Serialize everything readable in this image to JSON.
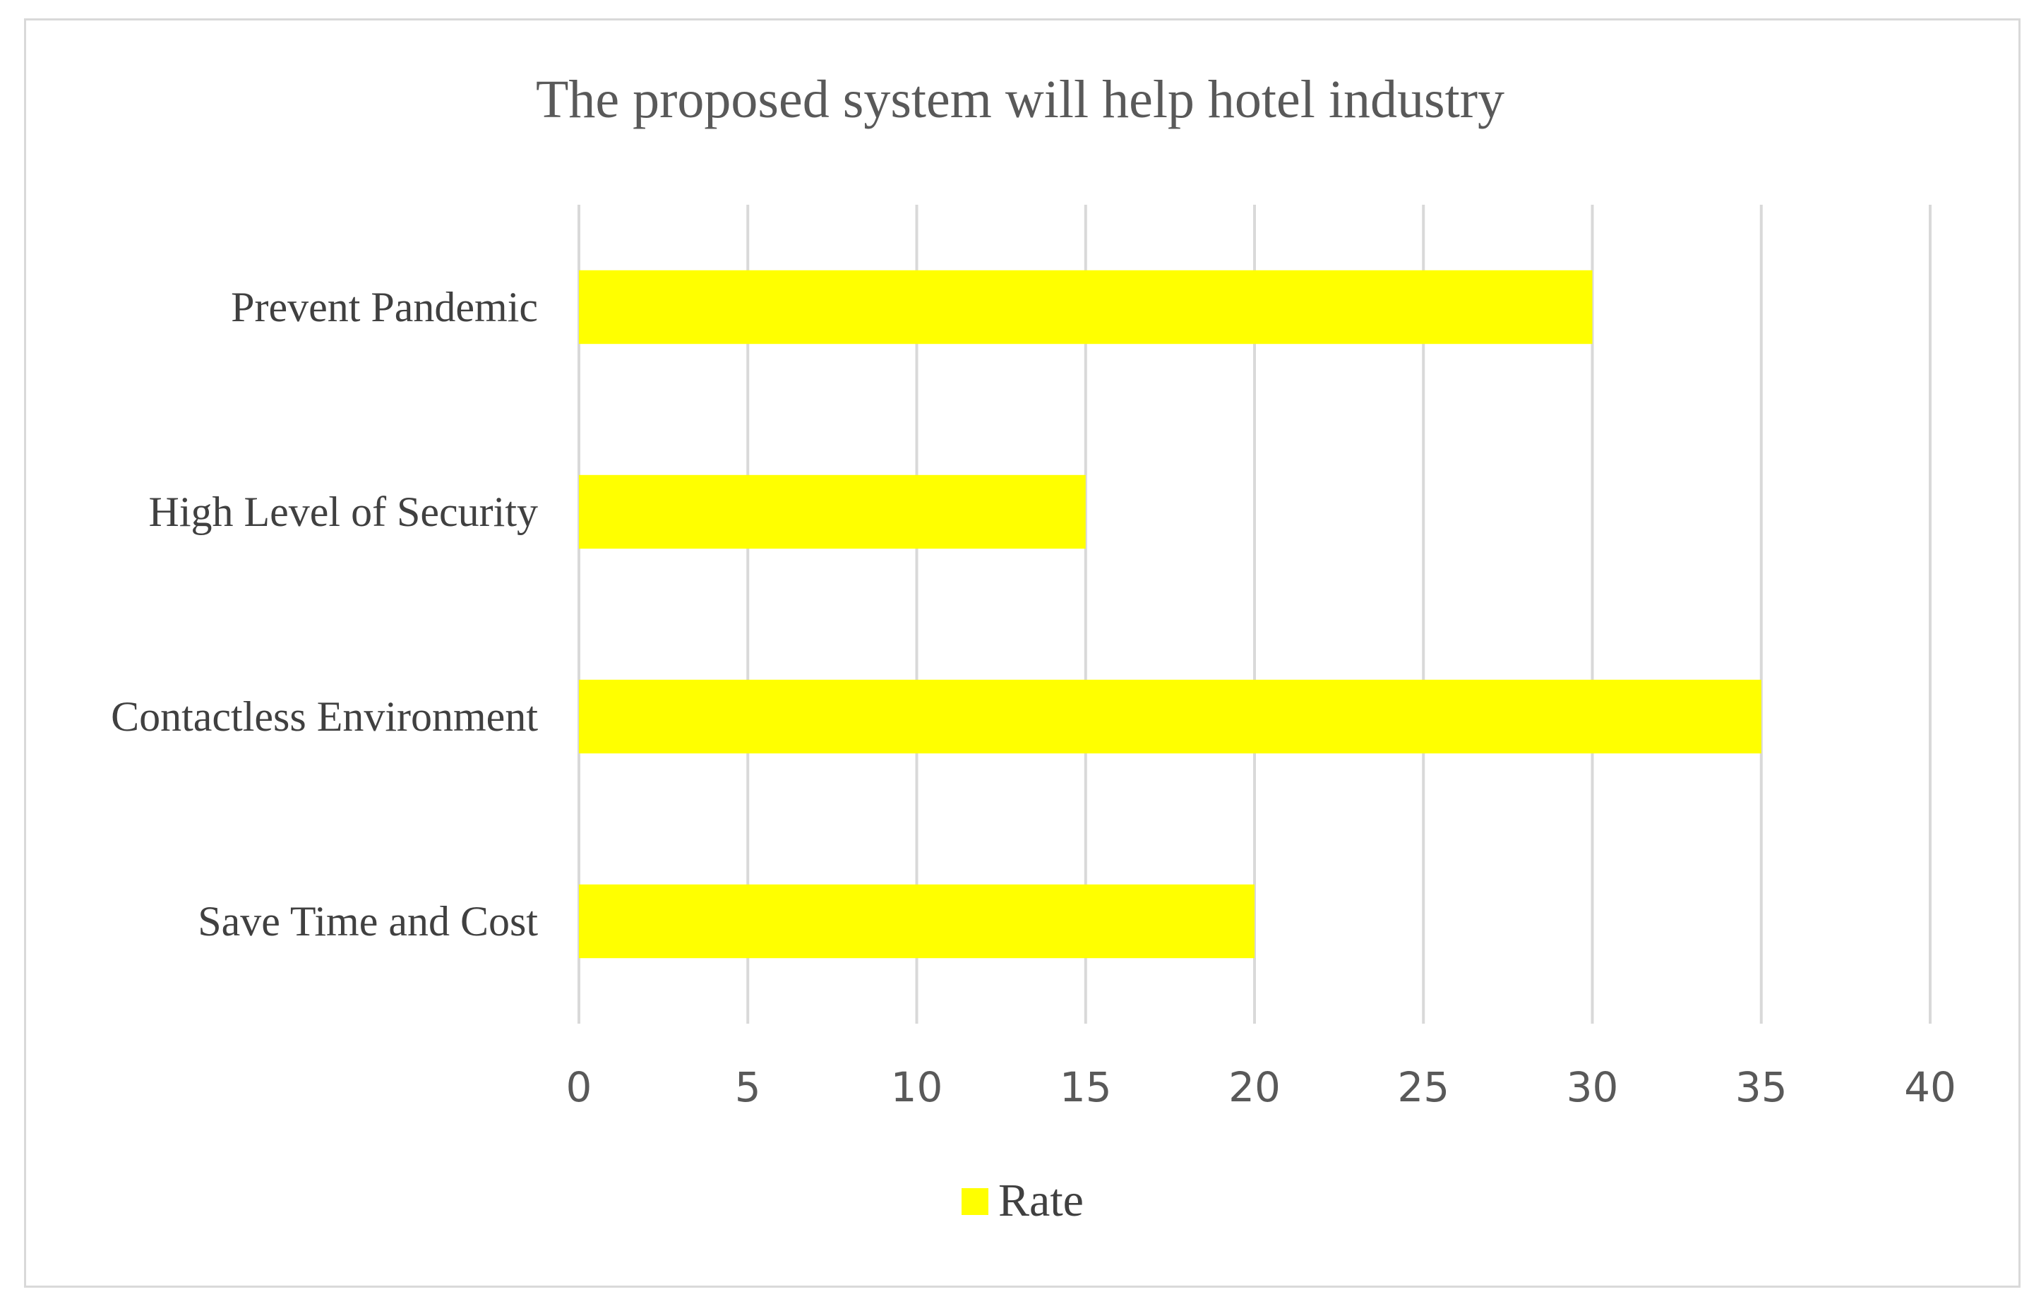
{
  "chart_data": {
    "type": "bar",
    "orientation": "horizontal",
    "title": "The proposed system will help hotel industry",
    "categories": [
      "Prevent Pandemic",
      "High Level of Security",
      "Contactless Environment",
      "Save Time and Cost"
    ],
    "series": [
      {
        "name": "Rate",
        "values": [
          30,
          15,
          35,
          20
        ],
        "color": "#ffff00"
      }
    ],
    "xlim": [
      0,
      40
    ],
    "xticks": [
      0,
      5,
      10,
      15,
      20,
      25,
      30,
      35,
      40
    ],
    "xtick_labels": [
      "0",
      "5",
      "10",
      "15",
      "20",
      "25",
      "30",
      "35",
      "40"
    ],
    "grid": "vertical",
    "grid_color": "#d9d9d9",
    "legend_position": "bottom"
  }
}
